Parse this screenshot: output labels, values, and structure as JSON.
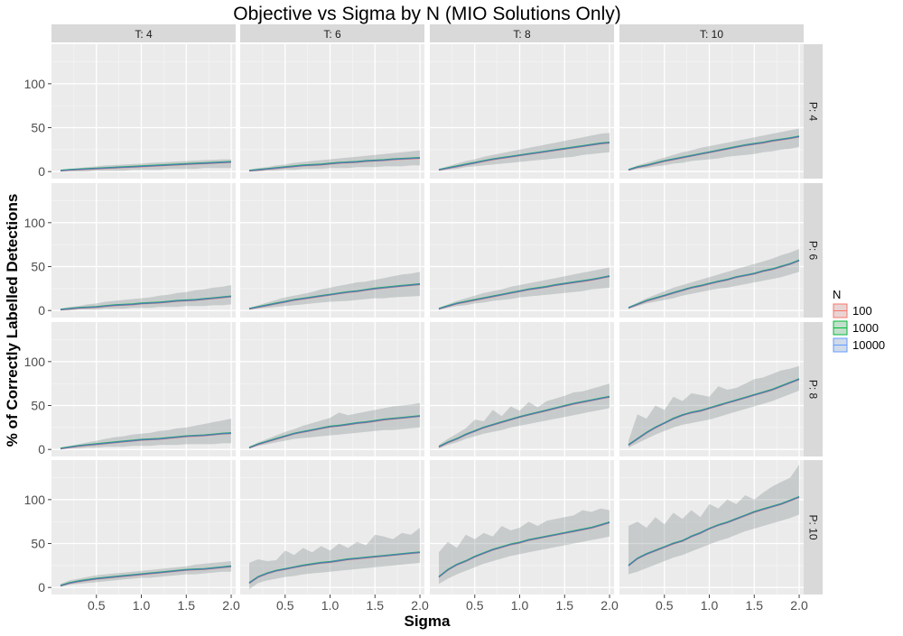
{
  "chart_data": {
    "type": "line",
    "title": "Objective vs Sigma by N (MIO Solutions Only)",
    "xlabel": "Sigma",
    "ylabel": "% of Correctly Labelled Detections",
    "xlim": [
      0,
      2.05
    ],
    "ylim": [
      -8,
      145
    ],
    "x_ticks": [
      0.5,
      1.0,
      1.5,
      2.0
    ],
    "x_tick_labels": [
      "0.5",
      "1.0",
      "1.5",
      "2.0"
    ],
    "y_ticks": [
      0,
      50,
      100
    ],
    "y_tick_labels": [
      "0",
      "50",
      "100"
    ],
    "grid": true,
    "legend": {
      "title": "N",
      "position": "right",
      "entries": [
        {
          "label": "100",
          "color": "#F8766D"
        },
        {
          "label": "1000",
          "color": "#00BA38"
        },
        {
          "label": "10000",
          "color": "#619CFF"
        }
      ]
    },
    "col_facets": [
      "T: 4",
      "T: 6",
      "T: 8",
      "T: 10"
    ],
    "row_facets": [
      "P: 4",
      "P: 6",
      "P: 8",
      "P: 10"
    ],
    "x": [
      0.1,
      0.2,
      0.3,
      0.4,
      0.5,
      0.6,
      0.7,
      0.8,
      0.9,
      1.0,
      1.1,
      1.2,
      1.3,
      1.4,
      1.5,
      1.6,
      1.7,
      1.8,
      1.9,
      2.0
    ],
    "panels": [
      {
        "T": "T: 4",
        "P": "P: 4",
        "mean": [
          1,
          2,
          2.5,
          3,
          3.5,
          4,
          4.5,
          5,
          5.5,
          6,
          6.5,
          7,
          7.5,
          8,
          8.5,
          9,
          9.5,
          10,
          10.5,
          11
        ],
        "lower": [
          0,
          0,
          0,
          0,
          1,
          1,
          1,
          1,
          2,
          2,
          2,
          2,
          3,
          3,
          3,
          3,
          4,
          4,
          4,
          4
        ],
        "upper": [
          2,
          3,
          4,
          5,
          6,
          7,
          7.5,
          8,
          8.5,
          9,
          10,
          10.5,
          11,
          11.5,
          12,
          12.5,
          13,
          13.5,
          14,
          14
        ]
      },
      {
        "T": "T: 6",
        "P": "P: 4",
        "mean": [
          1,
          2,
          3,
          4,
          5,
          6,
          7,
          7.5,
          8,
          9,
          10,
          10.5,
          11,
          12,
          12.5,
          13,
          14,
          14.5,
          15,
          15.5
        ],
        "lower": [
          0,
          0,
          1,
          1,
          2,
          2,
          3,
          3,
          3,
          4,
          4,
          4,
          5,
          5,
          5,
          6,
          6,
          6,
          7,
          7
        ],
        "upper": [
          2,
          4,
          5,
          7,
          8,
          10,
          11,
          12,
          13,
          14,
          15,
          16,
          17,
          18,
          19,
          20,
          21,
          22,
          23,
          24
        ]
      },
      {
        "T": "T: 8",
        "P": "P: 4",
        "mean": [
          2,
          4,
          6,
          8,
          10,
          12,
          14,
          15.5,
          17,
          18.5,
          20,
          21.5,
          23,
          24.5,
          26,
          27.5,
          29,
          30.5,
          32,
          33
        ],
        "lower": [
          1,
          2,
          3,
          5,
          6,
          7,
          8,
          9,
          10,
          11,
          12,
          13,
          14,
          15,
          16,
          17,
          19,
          20,
          21,
          22
        ],
        "upper": [
          3,
          6,
          9,
          12,
          14,
          17,
          19,
          21,
          23,
          25,
          27,
          29,
          31,
          33,
          35,
          37,
          39,
          41,
          43,
          44
        ]
      },
      {
        "T": "T: 10",
        "P": "P: 4",
        "mean": [
          2,
          5,
          7,
          9.5,
          12,
          14,
          16,
          18,
          20,
          22,
          24,
          26,
          28,
          30,
          31.5,
          33,
          35,
          36.5,
          38,
          40
        ],
        "lower": [
          1,
          3,
          4,
          6,
          7,
          9,
          10,
          12,
          13,
          14,
          15,
          17,
          18,
          19,
          20,
          22,
          23,
          25,
          26,
          28
        ],
        "upper": [
          3,
          7,
          10,
          13,
          16,
          19,
          22,
          24,
          27,
          29,
          31,
          33,
          35,
          37,
          39,
          41,
          43,
          45,
          47,
          49
        ]
      },
      {
        "T": "T: 4",
        "P": "P: 6",
        "mean": [
          1,
          2,
          3,
          3.5,
          4,
          5,
          6,
          6.5,
          7,
          8,
          8.5,
          9,
          10,
          11,
          11.5,
          12,
          13,
          14,
          15,
          16
        ],
        "lower": [
          0,
          0,
          1,
          1,
          1,
          2,
          2,
          2,
          3,
          3,
          3,
          4,
          4,
          4,
          5,
          5,
          5,
          6,
          6,
          7
        ],
        "upper": [
          2,
          4,
          5,
          7,
          8,
          10,
          11,
          12,
          13,
          14,
          15,
          17,
          18,
          20,
          21,
          23,
          24,
          26,
          27,
          29
        ]
      },
      {
        "T": "T: 6",
        "P": "P: 6",
        "mean": [
          2,
          4,
          6,
          8,
          10,
          12,
          13.5,
          15,
          16.5,
          18,
          19.5,
          21,
          22,
          23.5,
          25,
          26,
          27,
          28,
          29,
          30
        ],
        "lower": [
          1,
          2,
          3,
          4,
          5,
          6,
          7,
          8,
          9,
          10,
          10.5,
          11,
          12,
          13,
          14,
          14,
          15,
          15.5,
          16,
          16.5
        ],
        "upper": [
          3,
          6,
          9,
          12,
          15,
          17,
          19,
          21,
          24,
          26,
          28,
          30,
          32,
          33,
          35,
          37,
          39,
          41,
          42,
          44
        ]
      },
      {
        "T": "T: 8",
        "P": "P: 6",
        "mean": [
          2,
          5,
          8,
          10,
          12,
          14,
          16,
          18,
          20,
          22,
          24,
          25.5,
          27,
          29,
          30.5,
          32,
          33.5,
          35,
          37,
          39
        ],
        "lower": [
          1,
          3,
          5,
          6,
          8,
          9,
          11,
          12,
          13,
          15,
          16,
          17,
          18,
          19,
          20,
          21,
          22,
          24,
          25,
          26
        ],
        "upper": [
          3,
          7,
          11,
          14,
          17,
          20,
          22,
          24,
          27,
          29,
          31,
          33,
          35,
          37,
          39,
          41,
          43,
          45,
          47,
          49
        ]
      },
      {
        "T": "T: 10",
        "P": "P: 6",
        "mean": [
          3,
          7,
          11,
          14,
          17,
          20,
          23,
          26,
          28,
          30.5,
          33,
          35,
          38,
          40,
          42,
          45,
          47,
          50,
          53,
          57
        ],
        "lower": [
          2,
          5,
          8,
          10,
          12,
          14,
          17,
          19,
          21,
          23,
          25,
          26,
          28,
          30,
          32,
          34,
          36,
          38,
          41,
          44
        ],
        "upper": [
          4,
          9,
          14,
          18,
          22,
          26,
          29,
          32,
          35,
          38,
          41,
          44,
          47,
          50,
          53,
          56,
          59,
          63,
          66,
          70
        ]
      },
      {
        "T": "T: 4",
        "P": "P: 8",
        "mean": [
          1,
          2.5,
          4,
          5,
          6,
          7,
          8,
          9,
          10,
          11,
          11.5,
          12,
          13,
          14,
          15,
          15.5,
          16,
          17,
          18,
          18.5
        ],
        "lower": [
          0,
          1,
          1,
          2,
          2,
          3,
          3,
          3,
          4,
          4,
          4,
          5,
          5,
          5,
          6,
          6,
          6,
          6,
          7,
          7
        ],
        "upper": [
          2,
          4,
          6,
          8,
          10,
          12,
          14,
          15,
          17,
          18,
          19,
          21,
          22,
          24,
          25,
          27,
          29,
          31,
          33,
          35
        ]
      },
      {
        "T": "T: 6",
        "P": "P: 8",
        "mean": [
          2,
          6,
          9,
          12,
          15,
          18,
          20,
          22,
          24,
          26,
          27,
          28.5,
          30,
          31,
          32.5,
          34,
          35,
          36,
          37,
          38
        ],
        "lower": [
          1,
          4,
          6,
          8,
          10,
          12,
          13,
          14,
          15,
          16,
          17,
          18,
          19,
          20,
          21,
          22,
          22,
          23,
          24,
          25
        ],
        "upper": [
          3,
          8,
          12,
          16,
          20,
          23,
          27,
          30,
          33,
          36,
          42,
          39,
          41,
          43,
          45,
          47,
          49,
          50,
          51,
          53
        ]
      },
      {
        "T": "T: 8",
        "P": "P: 8",
        "mean": [
          3,
          8,
          12,
          17,
          21,
          25,
          28,
          31,
          34,
          37,
          39.5,
          42,
          44.5,
          47,
          49.5,
          52,
          54,
          56,
          58,
          60
        ],
        "lower": [
          1,
          5,
          8,
          12,
          15,
          18,
          20,
          22,
          25,
          27,
          29,
          31,
          33,
          35,
          37,
          39,
          41,
          43,
          45,
          47
        ],
        "upper": [
          5,
          12,
          18,
          24,
          34,
          32,
          45,
          38,
          49,
          44,
          54,
          48,
          55,
          58,
          61,
          65,
          66,
          69,
          72,
          75
        ]
      },
      {
        "T": "T: 10",
        "P": "P: 8",
        "mean": [
          5,
          12,
          19,
          25,
          30,
          35,
          39,
          42,
          44,
          47,
          50,
          53,
          56,
          59,
          62,
          65,
          68,
          72,
          76,
          80
        ],
        "lower": [
          2,
          7,
          12,
          17,
          21,
          25,
          28,
          30,
          32,
          34,
          37,
          40,
          43,
          46,
          49,
          52,
          55,
          59,
          63,
          67
        ],
        "upper": [
          10,
          40,
          35,
          50,
          45,
          60,
          55,
          64,
          62,
          60,
          72,
          68,
          70,
          75,
          80,
          82,
          86,
          90,
          92,
          95
        ]
      },
      {
        "T": "T: 4",
        "P": "P: 10",
        "mean": [
          2,
          5,
          7,
          8.5,
          10,
          11,
          12,
          13,
          14,
          15,
          16,
          17,
          18,
          19,
          20,
          20.5,
          21,
          22,
          23,
          24
        ],
        "lower": [
          1,
          3,
          4,
          5,
          6,
          7,
          8,
          9,
          10,
          11,
          11,
          12,
          13,
          14,
          15,
          15,
          16,
          17,
          18,
          18
        ],
        "upper": [
          4,
          8,
          10,
          12,
          14,
          15,
          16,
          17,
          18,
          19,
          20,
          21,
          22,
          23,
          24,
          26,
          27,
          28,
          29,
          30
        ]
      },
      {
        "T": "T: 6",
        "P": "P: 10",
        "mean": [
          5,
          12,
          16,
          19,
          21,
          23,
          25,
          26.5,
          28,
          29,
          30.5,
          32,
          33,
          34,
          35,
          36,
          37,
          38,
          39,
          40
        ],
        "lower": [
          -2,
          5,
          8,
          10,
          12,
          13,
          15,
          16,
          17,
          18,
          19,
          20,
          21,
          22,
          23,
          24,
          25,
          26,
          27,
          28
        ],
        "upper": [
          28,
          32,
          30,
          31,
          42,
          37,
          45,
          40,
          47,
          42,
          50,
          45,
          52,
          48,
          60,
          58,
          55,
          62,
          60,
          68
        ]
      },
      {
        "T": "T: 8",
        "P": "P: 10",
        "mean": [
          12,
          20,
          26,
          30,
          35,
          39,
          43,
          46,
          49,
          51,
          54,
          56,
          58,
          60,
          62,
          64,
          66,
          68,
          71,
          74
        ],
        "lower": [
          4,
          10,
          15,
          19,
          23,
          27,
          30,
          33,
          36,
          38,
          40,
          42,
          44,
          46,
          48,
          50,
          52,
          54,
          56,
          58
        ],
        "upper": [
          40,
          52,
          45,
          60,
          55,
          62,
          58,
          70,
          65,
          68,
          75,
          70,
          76,
          78,
          80,
          82,
          88,
          86,
          90,
          88
        ]
      },
      {
        "T": "T: 10",
        "P": "P: 10",
        "mean": [
          25,
          33,
          38,
          42,
          46,
          50,
          53,
          58,
          62,
          67,
          71,
          74,
          78,
          82,
          86,
          89,
          92,
          95,
          99,
          103
        ],
        "lower": [
          15,
          18,
          22,
          26,
          30,
          34,
          37,
          41,
          45,
          49,
          53,
          56,
          60,
          64,
          67,
          70,
          73,
          76,
          79,
          83
        ],
        "upper": [
          70,
          75,
          68,
          80,
          72,
          85,
          78,
          88,
          80,
          95,
          90,
          100,
          95,
          105,
          100,
          108,
          115,
          120,
          125,
          140
        ]
      }
    ]
  }
}
